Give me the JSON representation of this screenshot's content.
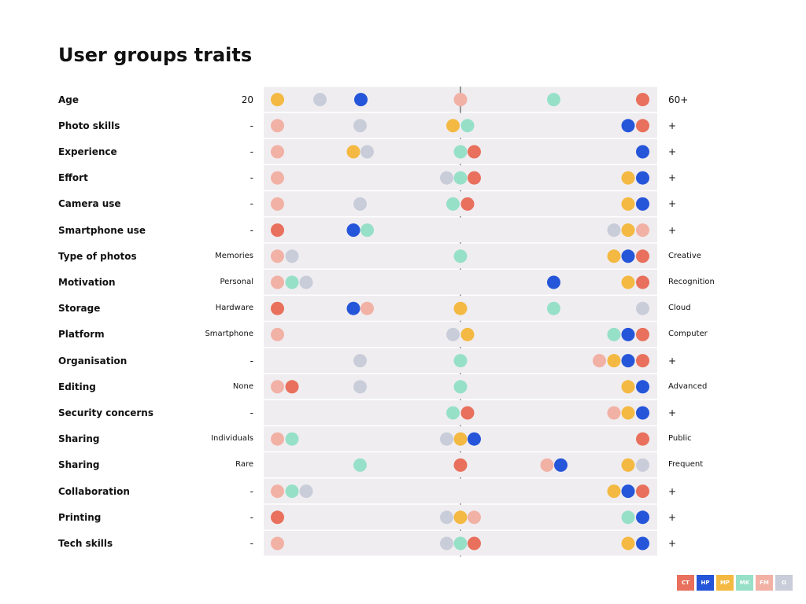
{
  "title": "User groups traits",
  "groups": [
    {
      "code": "CT",
      "color": "#E8705C"
    },
    {
      "code": "HP",
      "color": "#2555D9"
    },
    {
      "code": "MP",
      "color": "#F4B942"
    },
    {
      "code": "MK",
      "color": "#97E0C8"
    },
    {
      "code": "FM",
      "color": "#F2B1A5"
    },
    {
      "code": "O",
      "color": "#C9CDD9"
    }
  ],
  "chart_data": {
    "type": "scatter",
    "x_scale": "position along each trait's scale (0 = left label, 1 = right label)",
    "rows": [
      {
        "label": "Age",
        "left": "20",
        "right": "60+",
        "points": [
          {
            "g": "MP",
            "x": 0.035
          },
          {
            "g": "O",
            "x": 0.143
          },
          {
            "g": "HP",
            "x": 0.247
          },
          {
            "g": "FM",
            "x": 0.5
          },
          {
            "g": "MK",
            "x": 0.737
          },
          {
            "g": "CT",
            "x": 0.963
          }
        ]
      },
      {
        "label": "Photo skills",
        "left": "-",
        "right": "+",
        "points": [
          {
            "g": "FM",
            "x": 0.035
          },
          {
            "g": "O",
            "x": 0.245
          },
          {
            "g": "MP",
            "x": 0.481
          },
          {
            "g": "MK",
            "x": 0.518
          },
          {
            "g": "HP",
            "x": 0.926
          },
          {
            "g": "CT",
            "x": 0.963
          }
        ]
      },
      {
        "label": "Experience",
        "left": "-",
        "right": "+",
        "points": [
          {
            "g": "FM",
            "x": 0.035
          },
          {
            "g": "MP",
            "x": 0.228
          },
          {
            "g": "O",
            "x": 0.263
          },
          {
            "g": "MK",
            "x": 0.5
          },
          {
            "g": "CT",
            "x": 0.535
          },
          {
            "g": "HP",
            "x": 0.963
          }
        ]
      },
      {
        "label": "Effort",
        "left": "-",
        "right": "+",
        "points": [
          {
            "g": "FM",
            "x": 0.035
          },
          {
            "g": "O",
            "x": 0.465
          },
          {
            "g": "MK",
            "x": 0.5
          },
          {
            "g": "CT",
            "x": 0.535
          },
          {
            "g": "MP",
            "x": 0.926
          },
          {
            "g": "HP",
            "x": 0.963
          }
        ]
      },
      {
        "label": "Camera use",
        "left": "-",
        "right": "+",
        "points": [
          {
            "g": "FM",
            "x": 0.035
          },
          {
            "g": "O",
            "x": 0.245
          },
          {
            "g": "MK",
            "x": 0.481
          },
          {
            "g": "CT",
            "x": 0.518
          },
          {
            "g": "MP",
            "x": 0.926
          },
          {
            "g": "HP",
            "x": 0.963
          }
        ]
      },
      {
        "label": "Smartphone use",
        "left": "-",
        "right": "+",
        "points": [
          {
            "g": "CT",
            "x": 0.035
          },
          {
            "g": "HP",
            "x": 0.228
          },
          {
            "g": "MK",
            "x": 0.263
          },
          {
            "g": "O",
            "x": 0.89
          },
          {
            "g": "MP",
            "x": 0.926
          },
          {
            "g": "FM",
            "x": 0.963
          }
        ]
      },
      {
        "label": "Type of photos",
        "left": "Memories",
        "right": "Creative",
        "points": [
          {
            "g": "FM",
            "x": 0.035
          },
          {
            "g": "O",
            "x": 0.072
          },
          {
            "g": "MK",
            "x": 0.5
          },
          {
            "g": "MP",
            "x": 0.89
          },
          {
            "g": "HP",
            "x": 0.926
          },
          {
            "g": "CT",
            "x": 0.963
          }
        ]
      },
      {
        "label": "Motivation",
        "left": "Personal",
        "right": "Recognition",
        "points": [
          {
            "g": "FM",
            "x": 0.035
          },
          {
            "g": "MK",
            "x": 0.072
          },
          {
            "g": "O",
            "x": 0.108
          },
          {
            "g": "HP",
            "x": 0.737
          },
          {
            "g": "MP",
            "x": 0.926
          },
          {
            "g": "CT",
            "x": 0.963
          }
        ]
      },
      {
        "label": "Storage",
        "left": "Hardware",
        "right": "Cloud",
        "points": [
          {
            "g": "CT",
            "x": 0.035
          },
          {
            "g": "HP",
            "x": 0.228
          },
          {
            "g": "FM",
            "x": 0.263
          },
          {
            "g": "MP",
            "x": 0.5
          },
          {
            "g": "MK",
            "x": 0.737
          },
          {
            "g": "O",
            "x": 0.963
          }
        ]
      },
      {
        "label": "Platform",
        "left": "Smartphone",
        "right": "Computer",
        "points": [
          {
            "g": "FM",
            "x": 0.035
          },
          {
            "g": "O",
            "x": 0.481
          },
          {
            "g": "MP",
            "x": 0.518
          },
          {
            "g": "MK",
            "x": 0.89
          },
          {
            "g": "HP",
            "x": 0.926
          },
          {
            "g": "CT",
            "x": 0.963
          }
        ]
      },
      {
        "label": "Organisation",
        "left": "-",
        "right": "+",
        "points": [
          {
            "g": "O",
            "x": 0.245
          },
          {
            "g": "MK",
            "x": 0.5
          },
          {
            "g": "FM",
            "x": 0.853
          },
          {
            "g": "MP",
            "x": 0.89
          },
          {
            "g": "HP",
            "x": 0.926
          },
          {
            "g": "CT",
            "x": 0.963
          }
        ]
      },
      {
        "label": "Editing",
        "left": "None",
        "right": "Advanced",
        "points": [
          {
            "g": "FM",
            "x": 0.035
          },
          {
            "g": "CT",
            "x": 0.072
          },
          {
            "g": "O",
            "x": 0.245
          },
          {
            "g": "MK",
            "x": 0.5
          },
          {
            "g": "MP",
            "x": 0.926
          },
          {
            "g": "HP",
            "x": 0.963
          }
        ]
      },
      {
        "label": "Security concerns",
        "left": "-",
        "right": "+",
        "points": [
          {
            "g": "MK",
            "x": 0.481
          },
          {
            "g": "CT",
            "x": 0.518
          },
          {
            "g": "FM",
            "x": 0.89
          },
          {
            "g": "MP",
            "x": 0.926
          },
          {
            "g": "HP",
            "x": 0.963
          }
        ]
      },
      {
        "label": "Sharing",
        "left": "Individuals",
        "right": "Public",
        "points": [
          {
            "g": "FM",
            "x": 0.035
          },
          {
            "g": "MK",
            "x": 0.072
          },
          {
            "g": "O",
            "x": 0.465
          },
          {
            "g": "MP",
            "x": 0.5
          },
          {
            "g": "HP",
            "x": 0.535
          },
          {
            "g": "CT",
            "x": 0.963
          }
        ]
      },
      {
        "label": "Sharing",
        "left": "Rare",
        "right": "Frequent",
        "points": [
          {
            "g": "MK",
            "x": 0.245
          },
          {
            "g": "CT",
            "x": 0.5
          },
          {
            "g": "FM",
            "x": 0.72
          },
          {
            "g": "HP",
            "x": 0.755
          },
          {
            "g": "MP",
            "x": 0.926
          },
          {
            "g": "O",
            "x": 0.963
          }
        ]
      },
      {
        "label": "Collaboration",
        "left": "-",
        "right": "+",
        "points": [
          {
            "g": "FM",
            "x": 0.035
          },
          {
            "g": "MK",
            "x": 0.072
          },
          {
            "g": "O",
            "x": 0.108
          },
          {
            "g": "MP",
            "x": 0.89
          },
          {
            "g": "HP",
            "x": 0.926
          },
          {
            "g": "CT",
            "x": 0.963
          }
        ]
      },
      {
        "label": "Printing",
        "left": "-",
        "right": "+",
        "points": [
          {
            "g": "CT",
            "x": 0.035
          },
          {
            "g": "O",
            "x": 0.465
          },
          {
            "g": "MP",
            "x": 0.5
          },
          {
            "g": "FM",
            "x": 0.535
          },
          {
            "g": "MK",
            "x": 0.926
          },
          {
            "g": "HP",
            "x": 0.963
          }
        ]
      },
      {
        "label": "Tech skills",
        "left": "-",
        "right": "+",
        "points": [
          {
            "g": "FM",
            "x": 0.035
          },
          {
            "g": "O",
            "x": 0.465
          },
          {
            "g": "MK",
            "x": 0.5
          },
          {
            "g": "CT",
            "x": 0.535
          },
          {
            "g": "MP",
            "x": 0.926
          },
          {
            "g": "HP",
            "x": 0.963
          }
        ]
      }
    ]
  }
}
